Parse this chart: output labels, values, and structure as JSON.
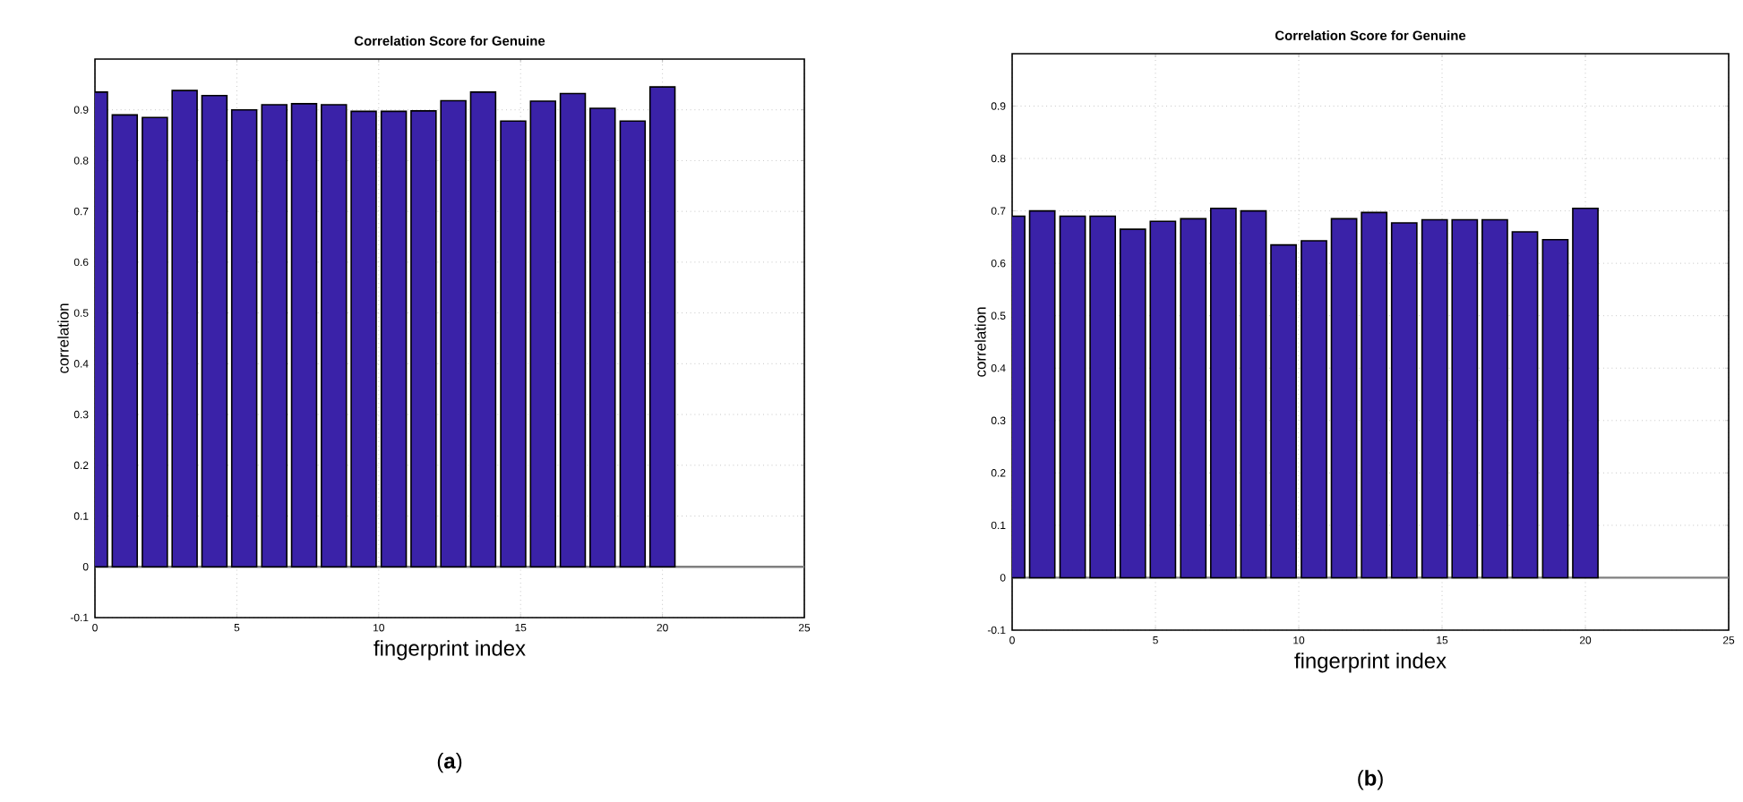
{
  "chart_data": [
    {
      "type": "bar",
      "title": "Correlation Score for Genuine",
      "xlabel": "fingerprint index",
      "ylabel": "correlation",
      "x": [
        0,
        1.05,
        2.11,
        3.16,
        4.21,
        5.26,
        6.32,
        7.37,
        8.42,
        9.47,
        10.53,
        11.58,
        12.63,
        13.68,
        14.74,
        15.79,
        16.84,
        17.89,
        18.95,
        20
      ],
      "values": [
        0.935,
        0.89,
        0.885,
        0.938,
        0.928,
        0.9,
        0.91,
        0.912,
        0.91,
        0.897,
        0.897,
        0.898,
        0.918,
        0.935,
        0.878,
        0.917,
        0.932,
        0.903,
        0.878,
        0.945
      ],
      "color": "#3a22a8",
      "xlim": [
        0,
        25
      ],
      "xticks": [
        0,
        5,
        10,
        15,
        20,
        25
      ],
      "ylim": [
        -0.1,
        1.0
      ],
      "yticks": [
        -0.1,
        0,
        0.1,
        0.2,
        0.3,
        0.4,
        0.5,
        0.6,
        0.7,
        0.8,
        0.9
      ],
      "grid": true,
      "annotations": [
        "(**a**)"
      ]
    },
    {
      "type": "bar",
      "title": "Correlation Score for Genuine",
      "xlabel": "fingerprint index",
      "ylabel": "correlation",
      "x": [
        0,
        1.05,
        2.11,
        3.16,
        4.21,
        5.26,
        6.32,
        7.37,
        8.42,
        9.47,
        10.53,
        11.58,
        12.63,
        13.68,
        14.74,
        15.79,
        16.84,
        17.89,
        18.95,
        20
      ],
      "values": [
        0.69,
        0.7,
        0.69,
        0.69,
        0.665,
        0.68,
        0.685,
        0.705,
        0.7,
        0.635,
        0.643,
        0.685,
        0.697,
        0.677,
        0.683,
        0.683,
        0.683,
        0.66,
        0.645,
        0.705
      ],
      "color": "#3a22a8",
      "xlim": [
        0,
        25
      ],
      "xticks": [
        0,
        5,
        10,
        15,
        20,
        25
      ],
      "ylim": [
        -0.1,
        1.0
      ],
      "yticks": [
        -0.1,
        0,
        0.1,
        0.2,
        0.3,
        0.4,
        0.5,
        0.6,
        0.7,
        0.8,
        0.9
      ],
      "grid": true,
      "annotations": [
        "(**b**)"
      ]
    }
  ]
}
